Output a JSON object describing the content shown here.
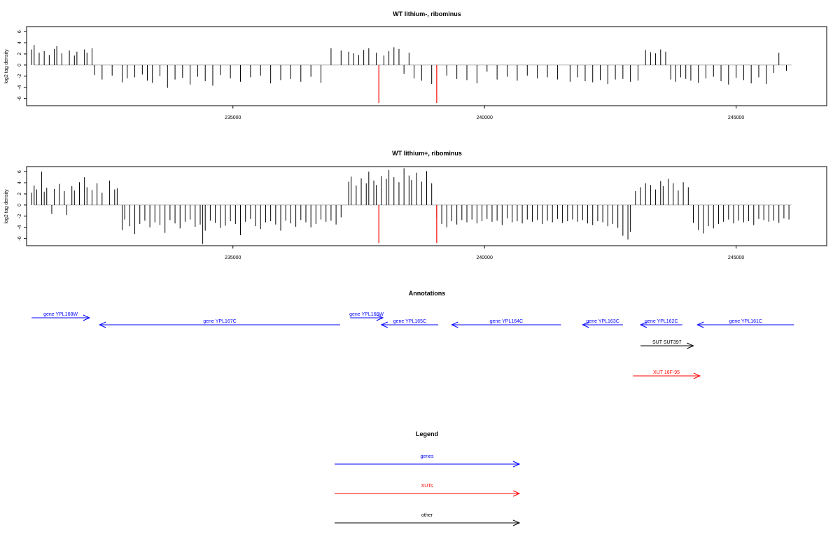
{
  "chart_data": [
    {
      "type": "bar",
      "title": "WT lithium-, ribominus",
      "ylabel": "log2 tag density",
      "xlabel": "",
      "xlim": [
        230900,
        246800
      ],
      "ylim": [
        -7.3,
        6.9
      ],
      "yticks": [
        -6,
        -4,
        -2,
        0,
        2,
        4,
        6
      ],
      "xticks": [
        235000,
        240000,
        245000
      ],
      "grid": false,
      "series": [
        {
          "name": "",
          "color": "#000000",
          "x": [
            231000,
            231050,
            231150,
            231250,
            231350,
            231450,
            231500,
            231600,
            231750,
            231850,
            231900,
            232050,
            232100,
            232200,
            232250,
            232400,
            232600,
            232800,
            232900,
            233050,
            233200,
            233300,
            233400,
            233550,
            233700,
            233850,
            234000,
            234150,
            234300,
            234450,
            234600,
            234750,
            234950,
            235150,
            235350,
            235550,
            235750,
            235950,
            236150,
            236350,
            236550,
            236750,
            236950,
            237150,
            237300,
            237400,
            237500,
            237600,
            237700,
            237850,
            238000,
            238100,
            238200,
            238300,
            238400,
            238500,
            238600,
            238750,
            238950,
            239250,
            239450,
            239650,
            239850,
            240050,
            240250,
            240450,
            240650,
            240850,
            241050,
            241250,
            241450,
            241700,
            241850,
            242000,
            242150,
            242300,
            242450,
            242600,
            242750,
            242900,
            243050,
            243200,
            243300,
            243400,
            243500,
            243600,
            243700,
            243800,
            243900,
            244000,
            244100,
            244250,
            244400,
            244550,
            244700,
            244850,
            245000,
            245150,
            245300,
            245450,
            245600,
            245750,
            245850,
            246000
          ],
          "y": [
            2.8,
            3.6,
            2.2,
            2.5,
            1.8,
            2.9,
            3.4,
            2.1,
            2.6,
            1.7,
            2.4,
            2.8,
            2.2,
            3.0,
            -1.8,
            -2.6,
            -1.9,
            -3.1,
            -2.4,
            -2.2,
            -1.7,
            -2.8,
            -3.2,
            -2.0,
            -4.1,
            -2.6,
            -2.3,
            -3.5,
            -2.1,
            -2.9,
            -3.7,
            -1.8,
            -2.4,
            -3.0,
            -2.2,
            -1.9,
            -3.3,
            -2.7,
            -2.5,
            -3.0,
            -2.1,
            -3.2,
            3.0,
            2.6,
            2.4,
            2.1,
            1.8,
            2.7,
            3.0,
            2.2,
            1.7,
            2.5,
            3.2,
            2.9,
            -1.6,
            2.2,
            -2.4,
            -2.8,
            -3.4,
            -1.9,
            -2.5,
            -2.7,
            -3.3,
            -1.2,
            -2.6,
            -2.1,
            -2.8,
            -1.9,
            -2.4,
            -2.2,
            -2.6,
            -3.0,
            -2.2,
            -2.9,
            -3.1,
            -2.7,
            -3.4,
            -2.6,
            -2.5,
            -3.0,
            -2.8,
            2.7,
            2.3,
            2.1,
            2.8,
            2.4,
            -2.6,
            -3.0,
            -2.2,
            -2.5,
            -2.8,
            -3.2,
            -2.4,
            -2.1,
            -2.9,
            -3.5,
            -2.3,
            -2.7,
            -3.3,
            -2.2,
            -3.4,
            -1.4,
            2.2,
            -1.0
          ]
        },
        {
          "name": "",
          "color": "#ff0000",
          "x": [
            237900,
            239050
          ],
          "y": [
            -6.8,
            -6.8
          ]
        }
      ]
    },
    {
      "type": "bar",
      "title": "WT lithium+, ribominus",
      "ylabel": "log2 tag density",
      "xlabel": "",
      "xlim": [
        230900,
        246800
      ],
      "ylim": [
        -7.3,
        6.9
      ],
      "yticks": [
        -6,
        -4,
        -2,
        0,
        2,
        4,
        6
      ],
      "xticks": [
        235000,
        240000,
        245000
      ],
      "grid": false,
      "series": [
        {
          "name": "",
          "color": "#000000",
          "x": [
            231000,
            231050,
            231100,
            231200,
            231250,
            231300,
            231400,
            231450,
            231550,
            231650,
            231700,
            231800,
            231850,
            231950,
            232050,
            232100,
            232200,
            232300,
            232400,
            232550,
            232650,
            232700,
            232800,
            232850,
            232950,
            233050,
            233150,
            233250,
            233350,
            233450,
            233550,
            233650,
            233750,
            233850,
            233950,
            234050,
            234150,
            234250,
            234350,
            234400,
            234450,
            234550,
            234650,
            234750,
            234850,
            234950,
            235050,
            235150,
            235250,
            235350,
            235450,
            235550,
            235650,
            235750,
            235850,
            235950,
            236050,
            236150,
            236250,
            236350,
            236450,
            236550,
            236650,
            236750,
            236850,
            236950,
            237050,
            237150,
            237300,
            237350,
            237450,
            237550,
            237650,
            237700,
            237800,
            237850,
            237950,
            238050,
            238100,
            238200,
            238300,
            238400,
            238500,
            238550,
            238650,
            238750,
            238850,
            238950,
            239050,
            239150,
            239250,
            239350,
            239450,
            239550,
            239650,
            239750,
            239850,
            239950,
            240050,
            240150,
            240250,
            240350,
            240450,
            240550,
            240650,
            240750,
            240850,
            240950,
            241050,
            241150,
            241250,
            241350,
            241450,
            241550,
            241650,
            241750,
            241850,
            241950,
            242050,
            242150,
            242250,
            242350,
            242450,
            242550,
            242650,
            242750,
            242850,
            242900,
            243000,
            243100,
            243200,
            243300,
            243400,
            243500,
            243550,
            243650,
            243750,
            243850,
            243950,
            244050,
            244150,
            244250,
            244350,
            244450,
            244550,
            244650,
            244750,
            244850,
            244950,
            245050,
            245150,
            245250,
            245350,
            245450,
            245550,
            245650,
            245750,
            245850,
            245950,
            246050
          ],
          "y": [
            2.2,
            3.5,
            2.8,
            6.0,
            2.4,
            3.1,
            -1.6,
            2.9,
            3.8,
            2.5,
            -1.8,
            3.4,
            2.6,
            4.1,
            5.0,
            3.2,
            2.7,
            3.9,
            2.2,
            4.4,
            2.8,
            3.0,
            -4.5,
            -2.6,
            -3.8,
            -5.2,
            -3.4,
            -2.8,
            -4.0,
            -3.1,
            -3.6,
            -5.0,
            -2.7,
            -3.3,
            -4.2,
            -3.0,
            -2.6,
            -3.9,
            -3.5,
            -7.0,
            -4.6,
            -2.8,
            -3.2,
            -4.1,
            -3.7,
            -2.9,
            -3.4,
            -5.4,
            -3.0,
            -2.5,
            -3.8,
            -4.3,
            -3.1,
            -2.9,
            -3.5,
            -4.6,
            -2.8,
            -3.3,
            -3.9,
            -2.7,
            -3.1,
            -4.0,
            -3.4,
            -2.6,
            -3.0,
            -2.8,
            -3.5,
            -2.2,
            4.2,
            5.1,
            3.5,
            4.8,
            3.9,
            6.0,
            4.4,
            3.6,
            5.2,
            4.7,
            6.3,
            5.0,
            4.1,
            6.6,
            5.3,
            4.5,
            5.8,
            4.2,
            6.1,
            3.9,
            -2.3,
            -3.4,
            -4.0,
            -2.9,
            -3.5,
            -2.7,
            -3.1,
            -2.6,
            -3.3,
            -2.9,
            -2.5,
            -3.0,
            -2.8,
            -3.6,
            -2.4,
            -3.1,
            -2.9,
            -3.3,
            -2.6,
            -3.0,
            -2.7,
            -3.4,
            -2.8,
            -3.1,
            -2.5,
            -3.2,
            -2.9,
            -2.6,
            -3.0,
            -2.7,
            -3.3,
            -3.6,
            -2.9,
            -3.1,
            -3.8,
            -3.4,
            -4.1,
            -5.5,
            -6.2,
            -4.8,
            2.5,
            3.2,
            3.9,
            3.6,
            2.8,
            4.3,
            3.4,
            4.7,
            3.9,
            2.6,
            4.1,
            3.2,
            -3.2,
            -4.5,
            -5.1,
            -3.8,
            -4.2,
            -3.4,
            -3.0,
            -2.6,
            -3.3,
            -2.8,
            -3.1,
            -2.9,
            -3.6,
            -2.5,
            -2.7,
            -3.0,
            -2.8,
            -3.2,
            -2.4,
            -2.6
          ]
        },
        {
          "name": "",
          "color": "#ff0000",
          "x": [
            237900,
            239050
          ],
          "y": [
            -6.8,
            -6.8
          ]
        }
      ]
    }
  ],
  "annotations": {
    "title": "Annotations",
    "features": [
      {
        "label": "gene YPL168W",
        "start": 231000,
        "end": 232150,
        "strand": "+",
        "color": "#0000ff",
        "row": 0
      },
      {
        "label": "gene YPL167C",
        "start": 232350,
        "end": 237130,
        "strand": "-",
        "color": "#0000ff",
        "row": 1
      },
      {
        "label": "gene YPL166W",
        "start": 237330,
        "end": 237980,
        "strand": "+",
        "color": "#0000ff",
        "row": 0
      },
      {
        "label": "gene YPL165C",
        "start": 237950,
        "end": 239080,
        "strand": "-",
        "color": "#0000ff",
        "row": 1
      },
      {
        "label": "gene YPL164C",
        "start": 239350,
        "end": 241520,
        "strand": "-",
        "color": "#0000ff",
        "row": 1
      },
      {
        "label": "gene YPL163C",
        "start": 241950,
        "end": 242750,
        "strand": "-",
        "color": "#0000ff",
        "row": 1
      },
      {
        "label": "gene YPL162C",
        "start": 243100,
        "end": 243930,
        "strand": "-",
        "color": "#0000ff",
        "row": 1
      },
      {
        "label": "gene YPL161C",
        "start": 244230,
        "end": 246150,
        "strand": "-",
        "color": "#0000ff",
        "row": 1
      },
      {
        "label": "SUT SUT397",
        "start": 243100,
        "end": 244150,
        "strand": "+",
        "color": "#000000",
        "row": 3
      },
      {
        "label": "XUT 16F-95",
        "start": 242950,
        "end": 244280,
        "strand": "+",
        "color": "#ff0000",
        "row": 4
      }
    ]
  },
  "legend": {
    "title": "Legend",
    "items": [
      {
        "label": "genes",
        "color": "#0000ff"
      },
      {
        "label": "XUTs",
        "color": "#ff0000"
      },
      {
        "label": "other",
        "color": "#000000"
      }
    ]
  }
}
